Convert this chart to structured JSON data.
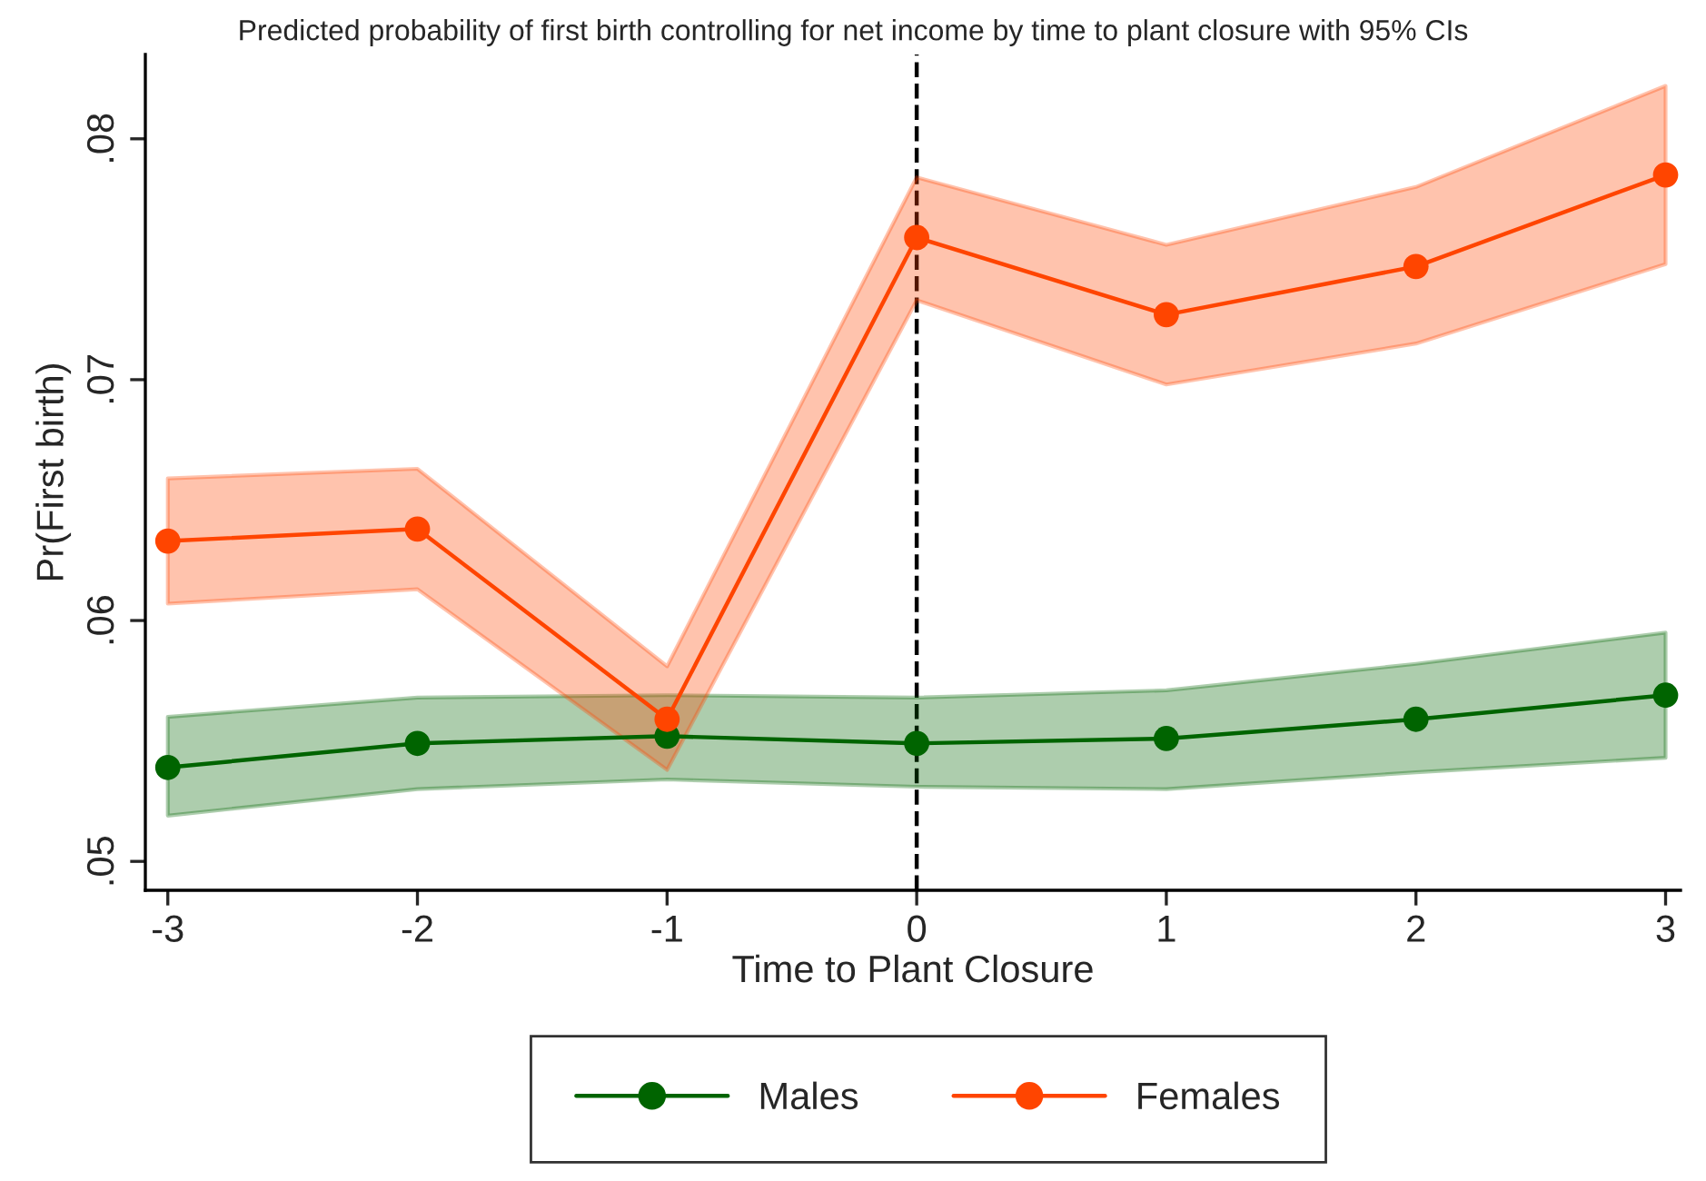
{
  "chart_data": {
    "type": "line",
    "title": "Predicted probability of first birth controlling for net income by time to plant closure with 95% CIs",
    "xlabel": "Time to Plant Closure",
    "ylabel": "Pr(First birth)",
    "x": [
      -3,
      -2,
      -1,
      0,
      1,
      2,
      3
    ],
    "series": [
      {
        "name": "Males",
        "color": "#006400",
        "values": [
          0.0539,
          0.0549,
          0.0552,
          0.0549,
          0.0551,
          0.0559,
          0.0569
        ],
        "lower": [
          0.0519,
          0.053,
          0.0534,
          0.0531,
          0.053,
          0.0537,
          0.0543
        ],
        "upper": [
          0.056,
          0.0568,
          0.0569,
          0.0568,
          0.0571,
          0.0582,
          0.0595
        ]
      },
      {
        "name": "Females",
        "color": "#ff4500",
        "values": [
          0.0633,
          0.0638,
          0.0559,
          0.0759,
          0.0727,
          0.0747,
          0.0785
        ],
        "lower": [
          0.0607,
          0.0613,
          0.0538,
          0.0733,
          0.0698,
          0.0715,
          0.0748
        ],
        "upper": [
          0.0659,
          0.0663,
          0.0581,
          0.0784,
          0.0756,
          0.078,
          0.0822
        ]
      }
    ],
    "xlim": [
      -3.09,
      3.06
    ],
    "ylim": [
      0.0488,
      0.0835
    ],
    "xticks": [
      -3,
      -2,
      -1,
      0,
      1,
      2,
      3
    ],
    "yticks": [
      {
        "value": 0.05,
        "label": ".05"
      },
      {
        "value": 0.06,
        "label": ".06"
      },
      {
        "value": 0.07,
        "label": ".07"
      },
      {
        "value": 0.08,
        "label": ".08"
      }
    ],
    "ref_lines": [
      {
        "axis": "x",
        "value": 0,
        "label": null,
        "color": "#000000",
        "line_style": "dashed"
      }
    ],
    "marker": "circle",
    "line_style": "solid",
    "grid": false,
    "legend": "bottom"
  }
}
